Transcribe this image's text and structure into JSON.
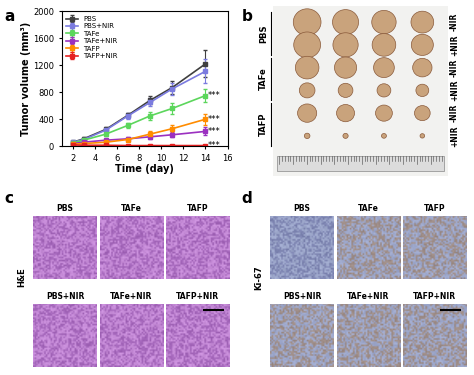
{
  "chart_data": {
    "type": "line",
    "panel_label": "a",
    "x_label": "Time (day)",
    "y_label": "Tumor volume (mm³)",
    "x": [
      2,
      3,
      5,
      7,
      9,
      11,
      14
    ],
    "xlim": [
      1,
      16
    ],
    "xticks": [
      2,
      4,
      6,
      8,
      10,
      12,
      14,
      16
    ],
    "ylim": [
      0,
      2000
    ],
    "yticks": [
      0,
      400,
      800,
      1200,
      1600,
      2000
    ],
    "legend": "upper left",
    "marker": "square",
    "line_style": "solid",
    "series": [
      {
        "name": "PBS",
        "color": "#404040",
        "values": [
          60,
          110,
          250,
          460,
          680,
          870,
          1220
        ],
        "errors": [
          10,
          20,
          30,
          40,
          60,
          100,
          200
        ]
      },
      {
        "name": "PBS+NIR",
        "color": "#7b7bdf",
        "values": [
          60,
          100,
          240,
          450,
          650,
          850,
          1110
        ],
        "errors": [
          10,
          20,
          30,
          40,
          60,
          90,
          180
        ]
      },
      {
        "name": "TAFe",
        "color": "#5cd65c",
        "values": [
          50,
          90,
          180,
          310,
          450,
          560,
          750
        ],
        "errors": [
          10,
          15,
          25,
          40,
          60,
          80,
          100
        ],
        "significance": "***"
      },
      {
        "name": "TAFe+NIR",
        "color": "#9b30c0",
        "values": [
          40,
          60,
          90,
          110,
          140,
          170,
          220
        ],
        "errors": [
          8,
          10,
          15,
          20,
          30,
          40,
          60
        ],
        "significance": "***"
      },
      {
        "name": "TAFP",
        "color": "#ff8c00",
        "values": [
          30,
          40,
          60,
          100,
          180,
          260,
          400
        ],
        "errors": [
          8,
          10,
          15,
          25,
          40,
          60,
          80
        ],
        "significance": "***"
      },
      {
        "name": "TAFP+NIR",
        "color": "#e62020",
        "values": [
          20,
          15,
          15,
          10,
          10,
          10,
          10
        ],
        "errors": [
          5,
          5,
          5,
          5,
          5,
          5,
          5
        ],
        "significance": "***"
      }
    ]
  },
  "photo_panel": {
    "label": "b",
    "groups": [
      {
        "name": "PBS",
        "rows": [
          "-NIR",
          "+NIR"
        ]
      },
      {
        "name": "TAFe",
        "rows": [
          "-NIR",
          "+NIR"
        ]
      },
      {
        "name": "TAFP",
        "rows": [
          "-NIR",
          "+NIR"
        ]
      }
    ]
  },
  "histology_panels": [
    {
      "label": "c",
      "stain": "H&E",
      "images": [
        [
          "PBS",
          "TAFe",
          "TAFP"
        ],
        [
          "PBS+NIR",
          "TAFe+NIR",
          "TAFP+NIR"
        ]
      ]
    },
    {
      "label": "d",
      "stain": "Ki-67",
      "images": [
        [
          "PBS",
          "TAFe",
          "TAFP"
        ],
        [
          "PBS+NIR",
          "TAFe+NIR",
          "TAFP+NIR"
        ]
      ]
    }
  ]
}
